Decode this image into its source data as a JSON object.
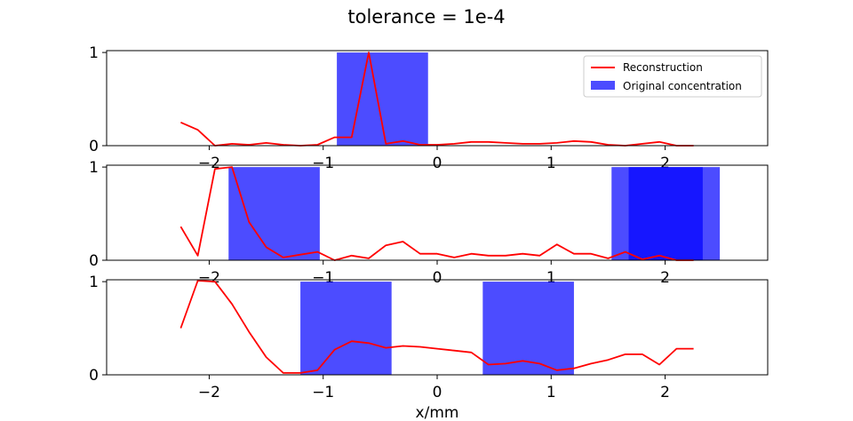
{
  "figure": {
    "title": "tolerance = 1e-4",
    "xlabel": "x/mm"
  },
  "colors": {
    "reconstruction": "#ff0000",
    "original": "#0000ff"
  },
  "legend": {
    "placement": "top-right",
    "entries": [
      "Reconstruction",
      "Original concentration"
    ]
  },
  "chart_data": [
    {
      "type": "line",
      "xlim": [
        -2.9,
        2.9
      ],
      "ylim": [
        0,
        1.02
      ],
      "xticks": [
        -2,
        -1,
        0,
        1,
        2
      ],
      "yticks": [
        0,
        1
      ],
      "bars": [
        {
          "x0": -0.88,
          "x1": -0.08,
          "height": 1.0
        }
      ],
      "reconstruction": {
        "x": [
          -2.25,
          -2.1,
          -1.95,
          -1.8,
          -1.65,
          -1.5,
          -1.35,
          -1.2,
          -1.05,
          -0.9,
          -0.75,
          -0.6,
          -0.45,
          -0.3,
          -0.15,
          0.0,
          0.15,
          0.3,
          0.45,
          0.6,
          0.75,
          0.9,
          1.05,
          1.2,
          1.35,
          1.5,
          1.65,
          1.8,
          1.95,
          2.1,
          2.25
        ],
        "y": [
          0.25,
          0.17,
          0.0,
          0.02,
          0.01,
          0.03,
          0.01,
          0.0,
          0.01,
          0.09,
          0.09,
          1.0,
          0.02,
          0.05,
          0.01,
          0.01,
          0.02,
          0.04,
          0.04,
          0.03,
          0.02,
          0.02,
          0.03,
          0.05,
          0.04,
          0.01,
          0.0,
          0.02,
          0.04,
          0.0,
          0.0
        ]
      }
    },
    {
      "type": "line",
      "xlim": [
        -2.9,
        2.9
      ],
      "ylim": [
        0,
        1.02
      ],
      "xticks": [
        -2,
        -1,
        0,
        1,
        2
      ],
      "yticks": [
        0,
        1
      ],
      "bars": [
        {
          "x0": -1.83,
          "x1": -1.03,
          "height": 1.0
        },
        {
          "x0": 1.53,
          "x1": 2.33,
          "height": 1.0
        },
        {
          "x0": 1.68,
          "x1": 2.48,
          "height": 1.0
        }
      ],
      "reconstruction": {
        "x": [
          -2.25,
          -2.1,
          -1.95,
          -1.8,
          -1.65,
          -1.5,
          -1.35,
          -1.2,
          -1.05,
          -0.9,
          -0.75,
          -0.6,
          -0.45,
          -0.3,
          -0.15,
          0.0,
          0.15,
          0.3,
          0.45,
          0.6,
          0.75,
          0.9,
          1.05,
          1.2,
          1.35,
          1.5,
          1.65,
          1.8,
          1.95,
          2.1,
          2.25
        ],
        "y": [
          0.36,
          0.05,
          0.98,
          1.0,
          0.41,
          0.14,
          0.03,
          0.06,
          0.09,
          0.0,
          0.05,
          0.02,
          0.16,
          0.2,
          0.07,
          0.07,
          0.03,
          0.07,
          0.05,
          0.05,
          0.07,
          0.05,
          0.17,
          0.07,
          0.07,
          0.02,
          0.09,
          0.01,
          0.05,
          0.0,
          0.0
        ]
      }
    },
    {
      "type": "line",
      "xlim": [
        -2.9,
        2.9
      ],
      "ylim": [
        0,
        1.02
      ],
      "xticks": [
        -2,
        -1,
        0,
        1,
        2
      ],
      "yticks": [
        0,
        1
      ],
      "bars": [
        {
          "x0": -1.2,
          "x1": -0.4,
          "height": 1.0
        },
        {
          "x0": 0.4,
          "x1": 1.2,
          "height": 1.0
        }
      ],
      "reconstruction": {
        "x": [
          -2.25,
          -2.1,
          -1.95,
          -1.8,
          -1.65,
          -1.5,
          -1.35,
          -1.2,
          -1.05,
          -0.9,
          -0.75,
          -0.6,
          -0.45,
          -0.3,
          -0.15,
          0.0,
          0.15,
          0.3,
          0.45,
          0.6,
          0.75,
          0.9,
          1.05,
          1.2,
          1.35,
          1.5,
          1.65,
          1.8,
          1.95,
          2.1,
          2.25
        ],
        "y": [
          0.5,
          1.01,
          1.0,
          0.76,
          0.46,
          0.19,
          0.02,
          0.02,
          0.05,
          0.27,
          0.36,
          0.34,
          0.29,
          0.31,
          0.3,
          0.28,
          0.26,
          0.24,
          0.11,
          0.12,
          0.15,
          0.12,
          0.05,
          0.07,
          0.12,
          0.16,
          0.22,
          0.22,
          0.11,
          0.28,
          0.28
        ]
      }
    }
  ]
}
